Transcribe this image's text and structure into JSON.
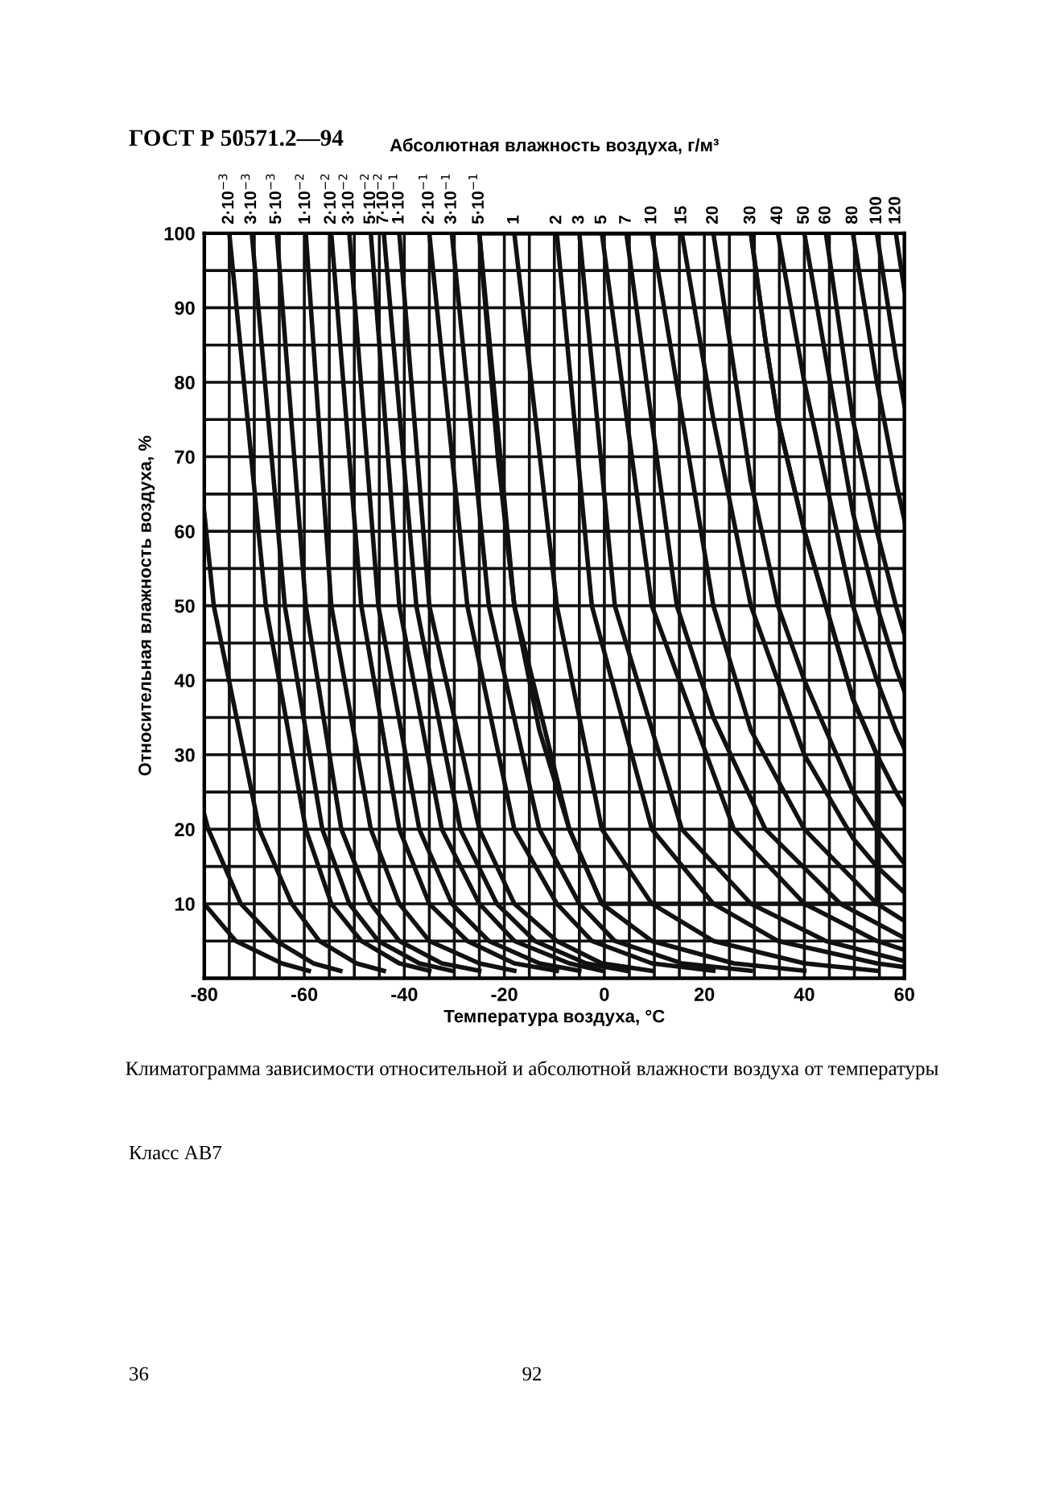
{
  "chart_data": {
    "type": "line",
    "title": "ГОСТ Р 50571.2—94",
    "x2label": "Абсолютная влажность воздуха, г/м³",
    "xlabel": "Температура воздуха, °С",
    "ylabel": "Относительная влажность воздуха, %",
    "annotations": [
      "Климатограмма зависимости относительной и абсолютной влажности воздуха от температуры",
      "Класс АВ7",
      "36",
      "92"
    ],
    "color": "#111111",
    "xlim": [
      -80,
      60
    ],
    "xticks": [
      -80,
      {
        "value": -75,
        "label": null
      },
      {
        "value": -70,
        "label": null
      },
      {
        "value": -65,
        "label": null
      },
      -60,
      {
        "value": -55,
        "label": null
      },
      {
        "value": -50,
        "label": null
      },
      {
        "value": -45,
        "label": null
      },
      -40,
      {
        "value": -35,
        "label": null
      },
      {
        "value": -30,
        "label": null
      },
      {
        "value": -25,
        "label": null
      },
      -20,
      {
        "value": -15,
        "label": null
      },
      {
        "value": -10,
        "label": null
      },
      {
        "value": -5,
        "label": null
      },
      0,
      {
        "value": 5,
        "label": null
      },
      {
        "value": 10,
        "label": null
      },
      {
        "value": 15,
        "label": null
      },
      20,
      {
        "value": 25,
        "label": null
      },
      {
        "value": 30,
        "label": null
      },
      {
        "value": 35,
        "label": null
      },
      40,
      {
        "value": 45,
        "label": null
      },
      {
        "value": 50,
        "label": null
      },
      {
        "value": 55,
        "label": null
      },
      60
    ],
    "ylim": [
      0,
      100
    ],
    "yticks": [
      {
        "value": 5,
        "label": null
      },
      10,
      {
        "value": 15,
        "label": null
      },
      20,
      {
        "value": 25,
        "label": null
      },
      30,
      {
        "value": 35,
        "label": null
      },
      40,
      {
        "value": 45,
        "label": null
      },
      50,
      {
        "value": 55,
        "label": null
      },
      60,
      {
        "value": 65,
        "label": null
      },
      70,
      {
        "value": 75,
        "label": null
      },
      80,
      {
        "value": 85,
        "label": null
      },
      90,
      {
        "value": 95,
        "label": null
      },
      100
    ],
    "grid": true,
    "series": [
      {
        "x": [
          -80,
          -78.1,
          -69,
          -62.5,
          -57,
          -49.6,
          -44.1
        ],
        "values": [
          62.5,
          50,
          20,
          10,
          5,
          2,
          1
        ]
      },
      {
        "x": [
          -80,
          -79.2,
          -72.7,
          -65.6,
          -58.2,
          -52.8
        ],
        "values": [
          22,
          20,
          10,
          5,
          2,
          1
        ]
      },
      {
        "x": [
          -80,
          -73.7,
          -64.5,
          -59.1
        ],
        "values": [
          10,
          5,
          2,
          1
        ]
      },
      {
        "name": "2·10$^{−3}$",
        "x": [
          -75,
          -67.7,
          -59.7,
          -54.6,
          -48.6,
          -41,
          -35
        ],
        "values": [
          100,
          50,
          20,
          10,
          5,
          2,
          1
        ]
      },
      {
        "name": "3·10$^{−3}$",
        "x": [
          -70.5,
          -63.9,
          -56.4,
          -51,
          -45.2,
          -37,
          -30.5
        ],
        "values": [
          100,
          50,
          20,
          10,
          5,
          2,
          1
        ]
      },
      {
        "name": "5·10$^{−3}$",
        "x": [
          -65.5,
          -59.7,
          -52.6,
          -46.7,
          -41,
          -32.5,
          -25
        ],
        "values": [
          100,
          50,
          20,
          10,
          5,
          2,
          1
        ]
      },
      {
        "name": "1·10$^{−2}$",
        "x": [
          -59.7,
          -54.6,
          -46.7,
          -41,
          -35,
          -25,
          -18
        ],
        "values": [
          100,
          50,
          20,
          10,
          5,
          2,
          1
        ]
      },
      {
        "name": "2·10$^{−2}$",
        "x": [
          -54.6,
          -48.6,
          -41,
          -35,
          -27.4,
          -18,
          -9.5
        ],
        "values": [
          100,
          50,
          20,
          10,
          5,
          2,
          1
        ]
      },
      {
        "name": "3·10$^{−2}$",
        "x": [
          -51,
          -45.2,
          -37,
          -30.5,
          -23.1,
          -13,
          -5
        ],
        "values": [
          100,
          50,
          20,
          10,
          5,
          2,
          1
        ]
      },
      {
        "name": "5·10$^{−2}$",
        "x": [
          -46.7,
          -41,
          -32.5,
          -25,
          -18,
          -7,
          -0.5
        ],
        "values": [
          100,
          50,
          20,
          10,
          5,
          2,
          1
        ]
      },
      {
        "name": "7·10$^{−2}$",
        "x": [
          -44.1,
          -37.6,
          -28.8,
          -21.5,
          -13.9,
          -3.65,
          4.4
        ],
        "values": [
          100,
          50,
          20,
          10,
          5,
          2,
          1
        ]
      },
      {
        "name": "1·10$^{−1}$",
        "x": [
          -41,
          -35,
          -25,
          -18,
          -9.5,
          -0.5,
          9.5
        ],
        "values": [
          100,
          50,
          20,
          10,
          5,
          2,
          1
        ]
      },
      {
        "name": "2·10$^{−1}$",
        "x": [
          -35,
          -27.4,
          -18,
          -9.5,
          -2.5,
          9.5,
          21.8
        ],
        "values": [
          100,
          50,
          20,
          10,
          5,
          2,
          1
        ]
      },
      {
        "name": "3·10$^{−1}$",
        "x": [
          -30.5,
          -23.1,
          -13,
          -5,
          2.1,
          15.5,
          29.3
        ],
        "values": [
          100,
          50,
          20,
          10,
          5,
          2,
          1
        ]
      },
      {
        "name": "5·10$^{−1}$",
        "x": [
          -25,
          -18,
          -7,
          -0.5,
          9.5,
          25.9,
          40
        ],
        "values": [
          100,
          50,
          20,
          10,
          5,
          2,
          1
        ]
      },
      {
        "name": "1",
        "x": [
          -18,
          -9.5,
          -0.5,
          9.5,
          21.8,
          40,
          54.5
        ],
        "values": [
          100,
          50,
          20,
          10,
          5,
          2,
          1
        ]
      },
      {
        "name": "2",
        "x": [
          -9.5,
          -2.5,
          9.5,
          21.8,
          34.7,
          54.5,
          60
        ],
        "values": [
          100,
          50,
          20,
          10,
          5,
          2,
          1.5
        ]
      },
      {
        "name": "3",
        "x": [
          -5,
          2.1,
          15.5,
          29.3,
          44.3,
          60
        ],
        "values": [
          100,
          50,
          20,
          10,
          5,
          2.3
        ]
      },
      {
        "name": "5",
        "x": [
          -0.5,
          9.5,
          25.9,
          40,
          54.5,
          60
        ],
        "values": [
          100,
          50,
          20,
          10,
          5,
          3.8
        ]
      },
      {
        "name": "7",
        "x": [
          4.4,
          14.5,
          21.8,
          32.2,
          47.2,
          60
        ],
        "values": [
          100,
          50,
          35,
          20,
          10,
          5.4
        ]
      },
      {
        "name": "10",
        "x": [
          9.5,
          21.8,
          29.3,
          40,
          54.5,
          60
        ],
        "values": [
          100,
          50,
          33.3,
          20,
          10,
          7.7
        ]
      },
      {
        "name": "15",
        "x": [
          15.5,
          21.8,
          29.3,
          40,
          49.7,
          54.5,
          60
        ],
        "values": [
          100,
          75,
          50,
          30,
          18.8,
          15,
          11.5
        ]
      },
      {
        "name": "20",
        "x": [
          21.8,
          29.3,
          34.7,
          40,
          44.3,
          49.7,
          54.5,
          60
        ],
        "values": [
          100,
          66.7,
          50,
          40,
          33.3,
          25,
          20,
          15.4
        ]
      },
      {
        "name": "30",
        "x": [
          29.3,
          32.2,
          34.7,
          40,
          44.3,
          49.7,
          54.5,
          58.3,
          60
        ],
        "values": [
          100,
          85.7,
          75,
          60,
          50,
          37.5,
          30,
          25,
          23.1
        ]
      },
      {
        "name": "40",
        "x": [
          34.7,
          40,
          44.3,
          49.7,
          54.5,
          58.3,
          60
        ],
        "values": [
          100,
          80,
          66.7,
          50,
          40,
          33.3,
          30.8
        ]
      },
      {
        "name": "50",
        "x": [
          40,
          44.3,
          49.7,
          54.5,
          58.3,
          60
        ],
        "values": [
          100,
          83.3,
          62.5,
          50,
          41.7,
          38.5
        ]
      },
      {
        "name": "60",
        "x": [
          44.3,
          49.7,
          54.5,
          58.3,
          60
        ],
        "values": [
          100,
          75,
          60,
          50,
          46.2
        ]
      },
      {
        "name": "80",
        "x": [
          49.7,
          54.5,
          58.3,
          60
        ],
        "values": [
          100,
          80,
          66.7,
          61.5
        ]
      },
      {
        "name": "100",
        "x": [
          54.5,
          58.3,
          60
        ],
        "values": [
          100,
          83.3,
          76.9
        ]
      },
      {
        "name": "120",
        "x": [
          58.3,
          60
        ],
        "values": [
          100,
          92.3
        ]
      },
      {
        "x": [
          -25,
          29.3,
          32.2,
          34.7,
          40,
          44.3,
          49.7,
          54.5,
          54.5
        ],
        "values": [
          100,
          100,
          85.7,
          75,
          60,
          50,
          37.5,
          30,
          10
        ]
      },
      {
        "x": [
          -25,
          -21.3,
          -18,
          -13,
          -7,
          -0.5,
          54.5
        ],
        "values": [
          100,
          70,
          50,
          33.3,
          20,
          10,
          10
        ]
      }
    ]
  }
}
